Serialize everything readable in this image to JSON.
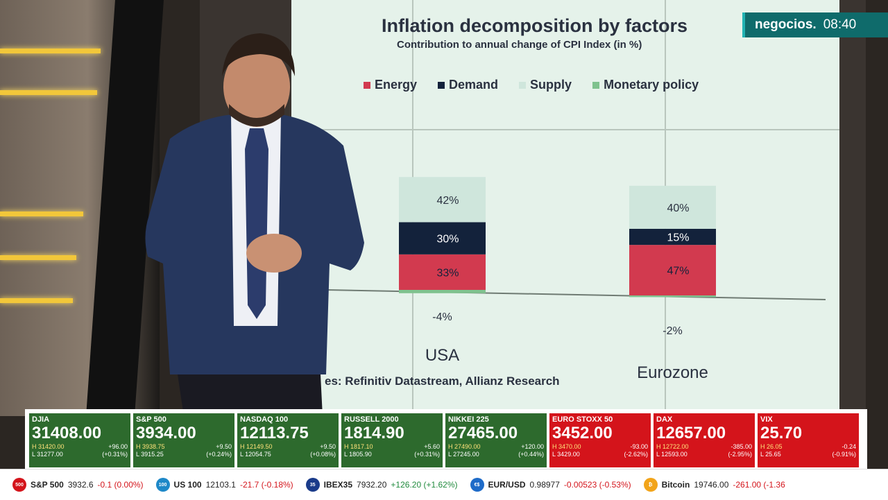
{
  "logo": {
    "brand": "negocios.",
    "time": "08:40",
    "color": "#0f6b6b"
  },
  "chart": {
    "title": "Inflation decomposition by factors",
    "subtitle": "Contribution to annual change of CPI Index (in %)",
    "source": "es: Refinitiv Datastream, Allianz Research"
  },
  "chart_data": {
    "type": "bar",
    "stacked": true,
    "title": "Inflation decomposition by factors",
    "subtitle": "Contribution to annual change of CPI Index (in %)",
    "categories": [
      "USA",
      "Eurozone"
    ],
    "series": [
      {
        "name": "Energy",
        "values": [
          33,
          47
        ],
        "color": "#d23a4f"
      },
      {
        "name": "Demand",
        "values": [
          30,
          15
        ],
        "color": "#13223b"
      },
      {
        "name": "Supply",
        "values": [
          42,
          40
        ],
        "color": "#cfe6dc"
      },
      {
        "name": "Monetary policy",
        "values": [
          -4,
          -2
        ],
        "color": "#7fc28e"
      }
    ],
    "labels": {
      "USA": {
        "Supply": "42%",
        "Demand": "30%",
        "Energy": "33%",
        "Monetary policy": "-4%"
      },
      "Eurozone": {
        "Supply": "40%",
        "Demand": "15%",
        "Energy": "47%",
        "Monetary policy": "-2%"
      }
    },
    "legend_position": "top"
  },
  "tiles": [
    {
      "name": "DJIA",
      "value": "31408.00",
      "h": "H 31420.00",
      "h_change": "+96.00",
      "l": "L 31277.00",
      "l_change": "(+0.31%)",
      "dir": "up"
    },
    {
      "name": "S&P 500",
      "value": "3934.00",
      "h": "H 3938.75",
      "h_change": "+9.50",
      "l": "L 3915.25",
      "l_change": "(+0.24%)",
      "dir": "up"
    },
    {
      "name": "NASDAQ 100",
      "value": "12113.75",
      "h": "H 12149.50",
      "h_change": "+9.50",
      "l": "L 12054.75",
      "l_change": "(+0.08%)",
      "dir": "up"
    },
    {
      "name": "RUSSELL 2000",
      "value": "1814.90",
      "h": "H 1817.10",
      "h_change": "+5.60",
      "l": "L 1805.90",
      "l_change": "(+0.31%)",
      "dir": "up"
    },
    {
      "name": "NIKKEI 225",
      "value": "27465.00",
      "h": "H 27490.00",
      "h_change": "+120.00",
      "l": "L 27245.00",
      "l_change": "(+0.44%)",
      "dir": "up"
    },
    {
      "name": "EURO STOXX 50",
      "value": "3452.00",
      "h": "H 3470.00",
      "h_change": "-93.00",
      "l": "L 3429.00",
      "l_change": "(-2.62%)",
      "dir": "down"
    },
    {
      "name": "DAX",
      "value": "12657.00",
      "h": "H 12722.00",
      "h_change": "-385.00",
      "l": "L 12593.00",
      "l_change": "(-2.95%)",
      "dir": "down"
    },
    {
      "name": "VIX",
      "value": "25.70",
      "h": "H 26.05",
      "h_change": "-0.24",
      "l": "L 25.65",
      "l_change": "(-0.91%)",
      "dir": "down"
    }
  ],
  "crawl": [
    {
      "badge": "500",
      "badge_color": "#d4141b",
      "name": "S&P 500",
      "value": "3932.6",
      "change": "-0.1 (0.00%)",
      "dir": "neg"
    },
    {
      "badge": "100",
      "badge_color": "#1e88c8",
      "name": "US 100",
      "value": "12103.1",
      "change": "-21.7 (-0.18%)",
      "dir": "neg"
    },
    {
      "badge": "35",
      "badge_color": "#1a3b8a",
      "name": "IBEX35",
      "value": "7932.20",
      "change": "+126.20 (+1.62%)",
      "dir": "pos"
    },
    {
      "badge": "€$",
      "badge_color": "#1e6bc8",
      "name": "EUR/USD",
      "value": "0.98977",
      "change": "-0.00523 (-0.53%)",
      "dir": "neg"
    },
    {
      "badge": "₿",
      "badge_color": "#f2a41a",
      "name": "Bitcoin",
      "value": "19746.00",
      "change": "-261.00 (-1.36",
      "dir": "neg"
    }
  ]
}
